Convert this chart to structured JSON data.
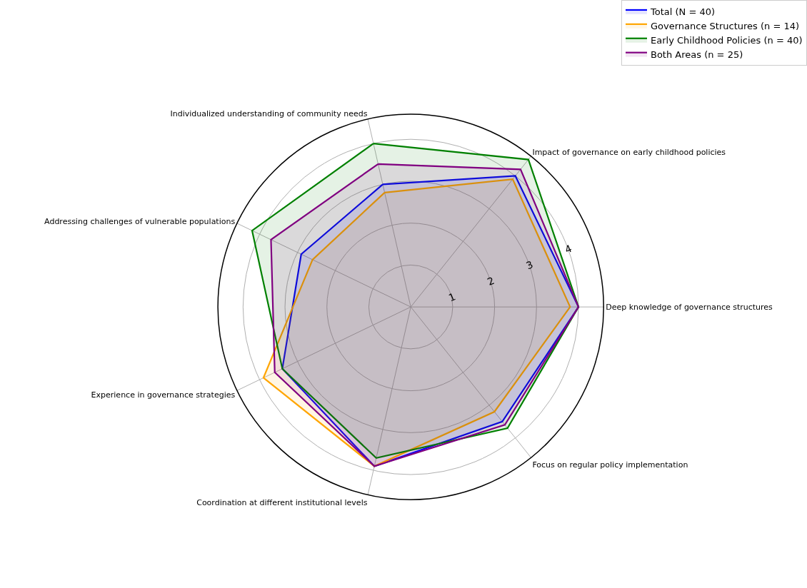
{
  "chart_data": {
    "type": "radar",
    "categories": [
      "Individualized understanding of community needs",
      "Impact of governance on early childhood policies",
      "Deep knowledge of governance structures",
      "Focus on regular policy implementation",
      "Coordination at different institutional levels",
      "Experience in governance strategies",
      "Addressing challenges of vulnerable populations"
    ],
    "series": [
      {
        "name": "Total (N = 40)",
        "color": "#0000ff",
        "values": [
          3.0,
          4.0,
          4.0,
          3.5,
          3.9,
          3.4,
          2.9
        ]
      },
      {
        "name": "Governance Structures (n = 14)",
        "color": "#ffa500",
        "values": [
          2.8,
          3.9,
          3.8,
          3.2,
          3.9,
          3.9,
          2.6
        ]
      },
      {
        "name": "Early Childhood Policies (n = 40)",
        "color": "#008000",
        "values": [
          4.0,
          4.5,
          4.0,
          3.7,
          3.7,
          3.4,
          4.2
        ]
      },
      {
        "name": "Both Areas (n = 25)",
        "color": "#800080",
        "values": [
          3.5,
          4.2,
          4.0,
          3.6,
          3.9,
          3.6,
          3.7
        ]
      }
    ],
    "ylim": [
      0,
      4.6
    ],
    "yticks": [
      1,
      2,
      3,
      4
    ],
    "grid": true,
    "legend": "top right",
    "marker": "none",
    "line_style": "solid"
  }
}
